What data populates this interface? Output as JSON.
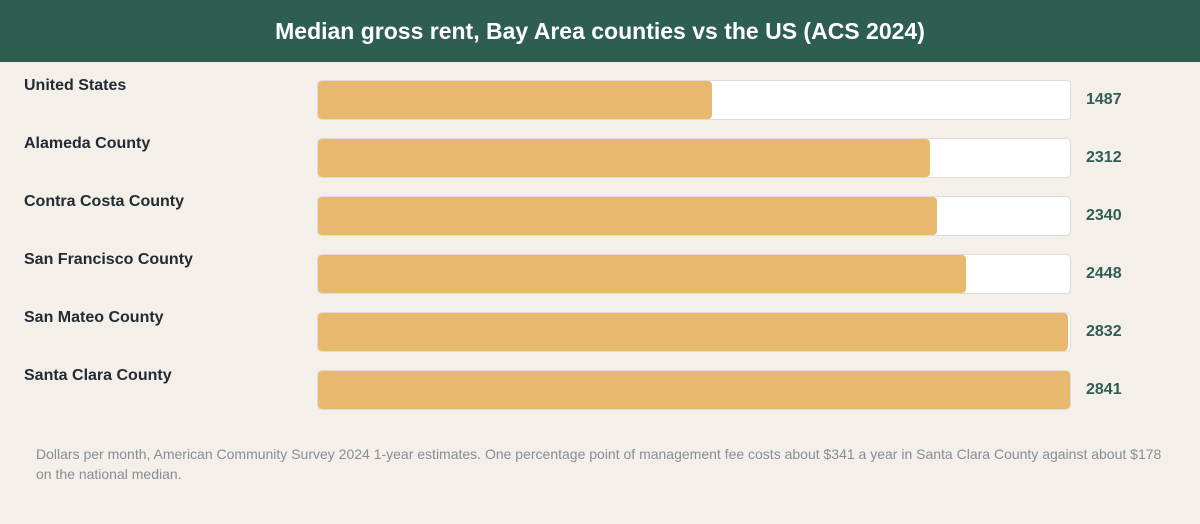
{
  "header": {
    "title": "Median gross rent, Bay Area counties vs the US (ACS 2024)"
  },
  "chart_data": {
    "type": "bar",
    "orientation": "horizontal",
    "title": "Median gross rent, Bay Area counties vs the US (ACS 2024)",
    "categories": [
      "United States",
      "Alameda County",
      "Contra Costa County",
      "San Francisco County",
      "San Mateo County",
      "Santa Clara County"
    ],
    "values": [
      1487,
      2312,
      2340,
      2448,
      2832,
      2841
    ],
    "value_labels": [
      "1487",
      "2312",
      "2340",
      "2448",
      "2832",
      "2841"
    ],
    "xlim": [
      0,
      2841
    ],
    "colors": {
      "bar": "#e8b86e",
      "track": "#ffffff",
      "value_text": "#2e5e52",
      "header": "#2e5e52"
    },
    "grid": false
  },
  "footnote": "Dollars per month, American Community Survey 2024 1-year estimates. One percentage point of management fee costs about $341 a year in Santa Clara County against about $178 on the national median."
}
